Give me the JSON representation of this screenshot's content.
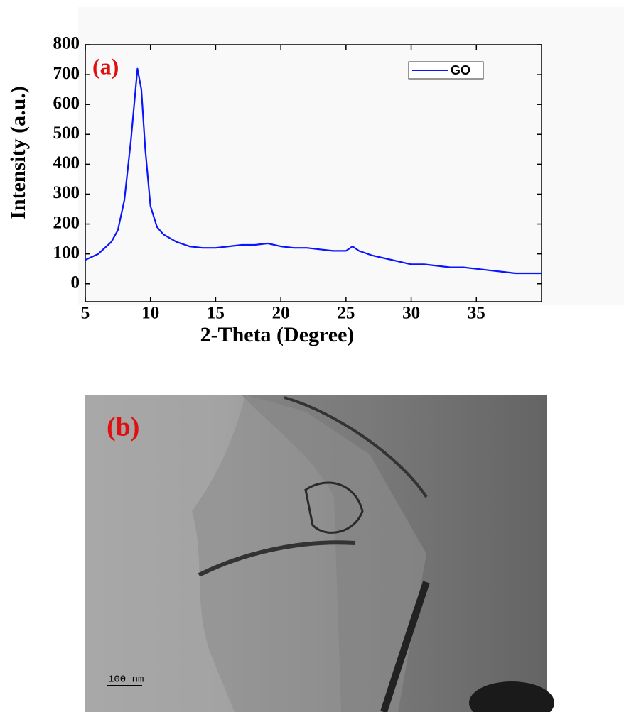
{
  "chart_data": {
    "type": "line",
    "panel_label": "(a)",
    "xlabel": "2-Theta (Degree)",
    "ylabel": "Intensity (a.u.)",
    "x": [
      5,
      5.5,
      6,
      6.5,
      7,
      7.5,
      8,
      8.5,
      9,
      9.3,
      9.6,
      10,
      10.5,
      11,
      12,
      13,
      14,
      15,
      16,
      17,
      18,
      19,
      20,
      21,
      22,
      23,
      24,
      25,
      25.5,
      26,
      27,
      28,
      29,
      30,
      31,
      32,
      33,
      34,
      35,
      36,
      37,
      38,
      39,
      40
    ],
    "series": [
      {
        "name": "GO",
        "color": "#0a14ff",
        "values": [
          80,
          90,
          100,
          120,
          140,
          180,
          280,
          480,
          720,
          650,
          450,
          260,
          190,
          165,
          140,
          125,
          120,
          120,
          125,
          130,
          130,
          135,
          125,
          120,
          120,
          115,
          110,
          110,
          125,
          110,
          95,
          85,
          75,
          65,
          65,
          60,
          55,
          55,
          50,
          45,
          40,
          35,
          35,
          35
        ]
      }
    ],
    "xlim": [
      5,
      40
    ],
    "xticks": [
      5,
      10,
      15,
      20,
      25,
      30,
      35
    ],
    "ylim": [
      -60,
      800
    ],
    "yticks": [
      0,
      100,
      200,
      300,
      400,
      500,
      600,
      700,
      800
    ],
    "legend": "top-right"
  },
  "image_panel": {
    "label": "(b)",
    "scale_bar": "100 nm"
  }
}
